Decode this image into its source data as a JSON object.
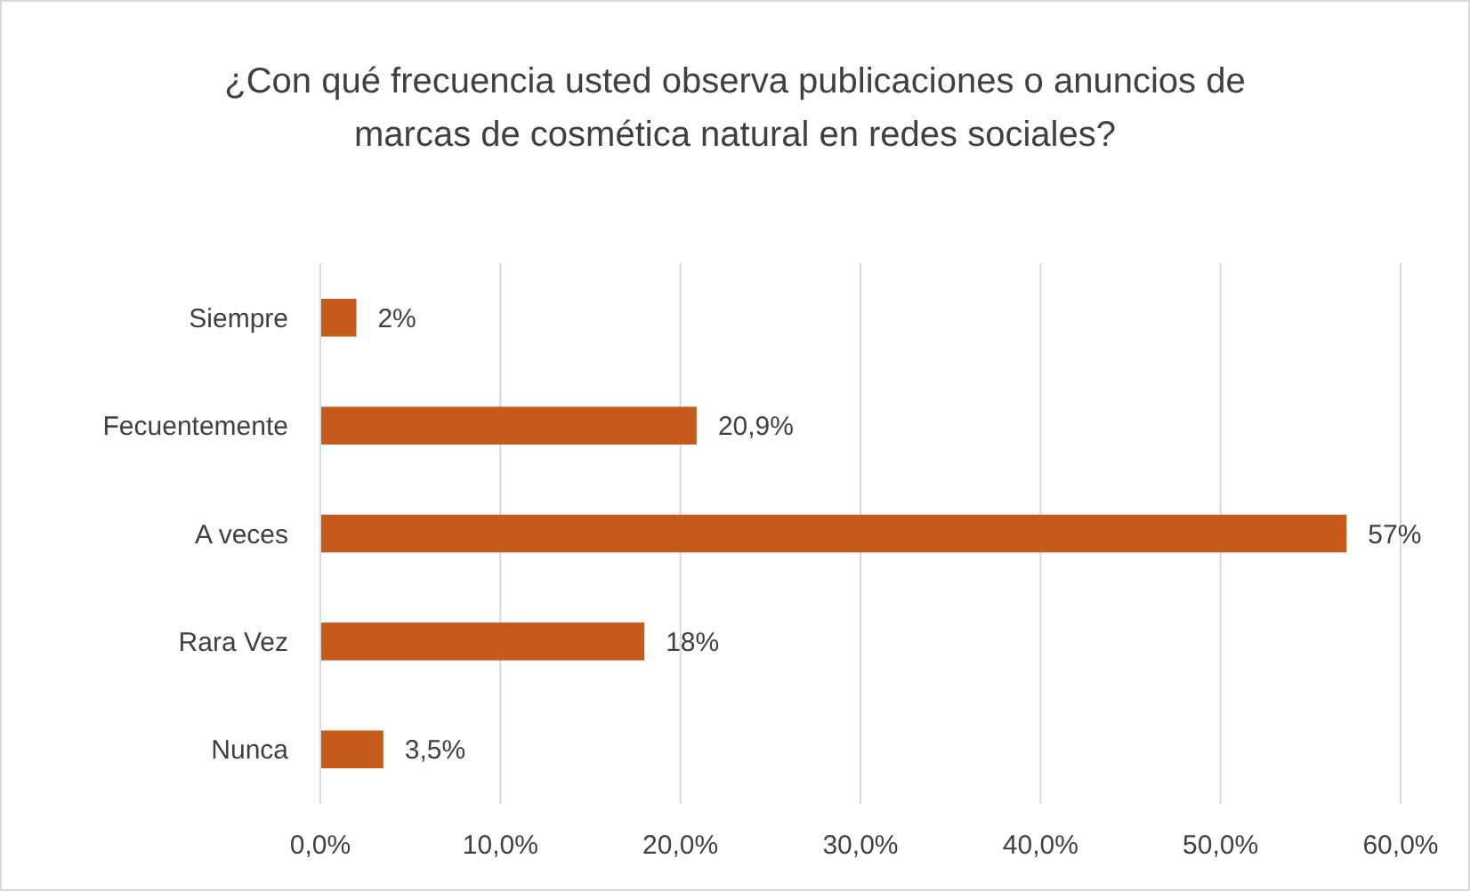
{
  "chart_data": {
    "type": "bar",
    "orientation": "horizontal",
    "title": "¿Con qué frecuencia usted observa publicaciones o anuncios de marcas de cosmética natural en redes sociales?",
    "categories": [
      "Siempre",
      "Fecuentemente",
      "A veces ",
      "Rara Vez",
      "Nunca"
    ],
    "values": [
      2,
      20.9,
      57,
      18,
      3.5
    ],
    "value_labels": [
      "2%",
      "20,9%",
      "57%",
      "18%",
      "3,5%"
    ],
    "color": "#c55a1a",
    "xlim": [
      0,
      60
    ],
    "xticks": [
      {
        "value": 0,
        "label": "0,0%"
      },
      {
        "value": 10,
        "label": "10,0%"
      },
      {
        "value": 20,
        "label": "20,0%"
      },
      {
        "value": 30,
        "label": "30,0%"
      },
      {
        "value": 40,
        "label": "40,0%"
      },
      {
        "value": 50,
        "label": "50,0%"
      },
      {
        "value": 60,
        "label": "60,0%"
      }
    ],
    "grid": "x"
  }
}
